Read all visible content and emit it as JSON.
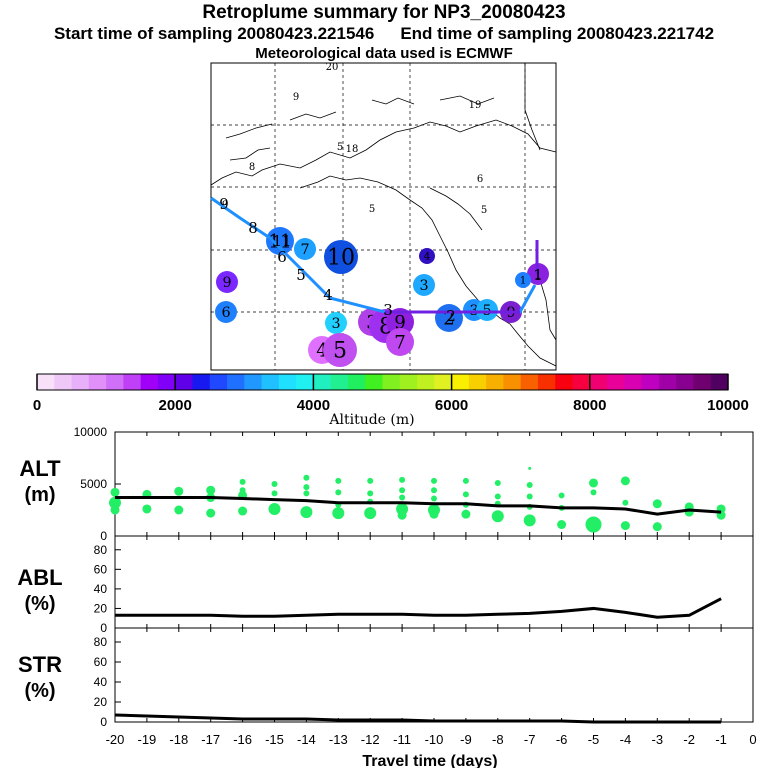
{
  "header": {
    "title": "Retroplume summary for NP3_20080423",
    "start_label": "Start time of sampling 20080423.221546",
    "end_label": "End time of sampling 20080423.221742",
    "met_label": "Meteorological data used is ECMWF"
  },
  "colors": {
    "trajectory": "#1e90ff",
    "release_segment": "#7020e0",
    "altitude_dots": "#22ee66",
    "line": "#000000"
  },
  "map": {
    "grid_numbers": [
      "20",
      "9",
      "19",
      "5",
      "18",
      "8",
      "6",
      "9",
      "5",
      "5"
    ],
    "plume_labels": [
      {
        "label": "9",
        "color": "#7a28ff",
        "size": 1
      },
      {
        "label": "11",
        "color": "#1e78ff",
        "size": 2
      },
      {
        "label": "7",
        "color": "#1ea0ff",
        "size": 1
      },
      {
        "label": "10",
        "color": "#1050e0",
        "size": 3
      },
      {
        "label": "4",
        "color": "#3010c0",
        "size": 0
      },
      {
        "label": "3",
        "color": "#1ea8ff",
        "size": 1
      },
      {
        "label": "6",
        "color": "#1e80ff",
        "size": 1
      },
      {
        "label": "3",
        "color": "#22d0ff",
        "size": 1
      },
      {
        "label": "4",
        "color": "#e070ff",
        "size": 2
      },
      {
        "label": "5",
        "color": "#c050f0",
        "size": 3
      },
      {
        "label": "3",
        "color": "#b040e8",
        "size": 2
      },
      {
        "label": "8",
        "color": "#a030f0",
        "size": 3
      },
      {
        "label": "9",
        "color": "#9020e0",
        "size": 2
      },
      {
        "label": "7",
        "color": "#c048f0",
        "size": 2
      },
      {
        "label": "2",
        "color": "#1e70f0",
        "size": 2
      },
      {
        "label": "3",
        "color": "#1e90ff",
        "size": 1
      },
      {
        "label": "5",
        "color": "#1eb0ff",
        "size": 1
      },
      {
        "label": "9",
        "color": "#7a20d0",
        "size": 1
      },
      {
        "label": "1",
        "color": "#8a20e0",
        "size": 1
      },
      {
        "label": "1",
        "color": "#1e80ff",
        "size": 0
      }
    ],
    "track_labels": [
      "9",
      "8",
      "11",
      "6",
      "5",
      "4",
      "3",
      "2",
      "1"
    ]
  },
  "colorbar": {
    "ticks": [
      "0",
      "2000",
      "4000",
      "6000",
      "8000",
      "10000"
    ],
    "label": "Altitude (m)",
    "min": 0,
    "max": 10000,
    "colors": [
      "#f8e0f8",
      "#f0c8f8",
      "#e8b0f8",
      "#e090f8",
      "#d070f8",
      "#c040f8",
      "#a000f8",
      "#8000f8",
      "#6000e8",
      "#1818f0",
      "#2048ff",
      "#2070ff",
      "#2098ff",
      "#20c0ff",
      "#20e0ff",
      "#20f0f0",
      "#20f0c0",
      "#20f090",
      "#20f060",
      "#40f020",
      "#80f020",
      "#a0f020",
      "#c0f020",
      "#e0f020",
      "#f8f000",
      "#f8d000",
      "#f8b000",
      "#f89000",
      "#f86000",
      "#f83000",
      "#f80010",
      "#f80040",
      "#f00070",
      "#e80098",
      "#d800b0",
      "#c000c0",
      "#a000a8",
      "#880090",
      "#700070",
      "#500060"
    ]
  },
  "chart_data": [
    {
      "type": "line",
      "panel_label": "ALT",
      "unit_label": "(m)",
      "ylim": [
        0,
        10000
      ],
      "yticks": [
        "0",
        "5000",
        "10000"
      ],
      "x": [
        -20,
        -19,
        -18,
        -17,
        -16,
        -15,
        -14,
        -13,
        -12,
        -11,
        -10,
        -9,
        -8,
        -7,
        -6,
        -5,
        -4,
        -3,
        -2,
        -1
      ],
      "values": [
        3700,
        3700,
        3700,
        3700,
        3600,
        3500,
        3400,
        3200,
        3200,
        3200,
        3100,
        3100,
        2900,
        2900,
        2700,
        2700,
        2600,
        2100,
        2500,
        2300
      ],
      "scatter": [
        {
          "x": -20,
          "y": 4200,
          "s": 2
        },
        {
          "x": -20,
          "y": 3200,
          "s": 3
        },
        {
          "x": -20,
          "y": 2500,
          "s": 2
        },
        {
          "x": -19,
          "y": 4000,
          "s": 2
        },
        {
          "x": -19,
          "y": 2600,
          "s": 2
        },
        {
          "x": -18,
          "y": 4300,
          "s": 2
        },
        {
          "x": -18,
          "y": 2500,
          "s": 2
        },
        {
          "x": -17,
          "y": 4400,
          "s": 2
        },
        {
          "x": -17,
          "y": 3700,
          "s": 2
        },
        {
          "x": -17,
          "y": 2200,
          "s": 2
        },
        {
          "x": -16,
          "y": 5200,
          "s": 1
        },
        {
          "x": -16,
          "y": 4400,
          "s": 1
        },
        {
          "x": -16,
          "y": 3900,
          "s": 2
        },
        {
          "x": -16,
          "y": 2400,
          "s": 2
        },
        {
          "x": -15,
          "y": 5000,
          "s": 1
        },
        {
          "x": -15,
          "y": 4100,
          "s": 1
        },
        {
          "x": -15,
          "y": 2600,
          "s": 3
        },
        {
          "x": -14,
          "y": 5600,
          "s": 1
        },
        {
          "x": -14,
          "y": 4700,
          "s": 1
        },
        {
          "x": -14,
          "y": 4100,
          "s": 1
        },
        {
          "x": -14,
          "y": 2300,
          "s": 3
        },
        {
          "x": -13,
          "y": 5300,
          "s": 1
        },
        {
          "x": -13,
          "y": 4200,
          "s": 1
        },
        {
          "x": -13,
          "y": 3000,
          "s": 1
        },
        {
          "x": -13,
          "y": 2200,
          "s": 3
        },
        {
          "x": -12,
          "y": 5300,
          "s": 1
        },
        {
          "x": -12,
          "y": 4100,
          "s": 1
        },
        {
          "x": -12,
          "y": 3300,
          "s": 1
        },
        {
          "x": -12,
          "y": 2200,
          "s": 3
        },
        {
          "x": -11,
          "y": 5400,
          "s": 1
        },
        {
          "x": -11,
          "y": 4400,
          "s": 1
        },
        {
          "x": -11,
          "y": 3700,
          "s": 1
        },
        {
          "x": -11,
          "y": 2600,
          "s": 3
        },
        {
          "x": -11,
          "y": 2000,
          "s": 2
        },
        {
          "x": -10,
          "y": 5300,
          "s": 1
        },
        {
          "x": -10,
          "y": 4400,
          "s": 1
        },
        {
          "x": -10,
          "y": 3600,
          "s": 1
        },
        {
          "x": -10,
          "y": 2500,
          "s": 3
        },
        {
          "x": -10,
          "y": 2100,
          "s": 2
        },
        {
          "x": -9,
          "y": 5300,
          "s": 1
        },
        {
          "x": -9,
          "y": 4000,
          "s": 1
        },
        {
          "x": -9,
          "y": 3000,
          "s": 1
        },
        {
          "x": -9,
          "y": 2100,
          "s": 2
        },
        {
          "x": -8,
          "y": 5100,
          "s": 1
        },
        {
          "x": -8,
          "y": 3800,
          "s": 1
        },
        {
          "x": -8,
          "y": 3100,
          "s": 1
        },
        {
          "x": -8,
          "y": 1900,
          "s": 3
        },
        {
          "x": -7,
          "y": 6500,
          "s": 0
        },
        {
          "x": -7,
          "y": 4900,
          "s": 1
        },
        {
          "x": -7,
          "y": 3800,
          "s": 1
        },
        {
          "x": -7,
          "y": 2800,
          "s": 1
        },
        {
          "x": -7,
          "y": 1500,
          "s": 3
        },
        {
          "x": -6,
          "y": 3900,
          "s": 1
        },
        {
          "x": -6,
          "y": 2700,
          "s": 1
        },
        {
          "x": -6,
          "y": 1100,
          "s": 2
        },
        {
          "x": -5,
          "y": 5100,
          "s": 2
        },
        {
          "x": -5,
          "y": 4200,
          "s": 1
        },
        {
          "x": -5,
          "y": 1100,
          "s": 4
        },
        {
          "x": -4,
          "y": 5300,
          "s": 2
        },
        {
          "x": -4,
          "y": 3200,
          "s": 1
        },
        {
          "x": -4,
          "y": 1000,
          "s": 2
        },
        {
          "x": -3,
          "y": 3100,
          "s": 2
        },
        {
          "x": -3,
          "y": 900,
          "s": 2
        },
        {
          "x": -2,
          "y": 2800,
          "s": 2
        },
        {
          "x": -2,
          "y": 2300,
          "s": 2
        },
        {
          "x": -1,
          "y": 2600,
          "s": 2
        },
        {
          "x": -1,
          "y": 2000,
          "s": 2
        }
      ]
    },
    {
      "type": "line",
      "panel_label": "ABL",
      "unit_label": "(%)",
      "ylim": [
        0,
        90
      ],
      "yticks": [
        "0",
        "20",
        "40",
        "60",
        "80"
      ],
      "x": [
        -20,
        -19,
        -18,
        -17,
        -16,
        -15,
        -14,
        -13,
        -12,
        -11,
        -10,
        -9,
        -8,
        -7,
        -6,
        -5,
        -4,
        -3,
        -2,
        -1
      ],
      "values": [
        13,
        13,
        13,
        13,
        12,
        12,
        13,
        14,
        14,
        14,
        13,
        13,
        14,
        15,
        17,
        20,
        16,
        11,
        13,
        30
      ]
    },
    {
      "type": "line",
      "panel_label": "STR",
      "unit_label": "(%)",
      "ylim": [
        0,
        90
      ],
      "yticks": [
        "0",
        "20",
        "40",
        "60",
        "80"
      ],
      "x": [
        -20,
        -19,
        -18,
        -17,
        -16,
        -15,
        -14,
        -13,
        -12,
        -11,
        -10,
        -9,
        -8,
        -7,
        -6,
        -5,
        -4,
        -3,
        -2,
        -1
      ],
      "values": [
        7,
        6,
        5,
        4,
        3,
        3,
        3,
        2,
        2,
        2,
        1,
        1,
        1,
        1,
        1,
        0,
        0,
        0,
        0,
        0
      ],
      "xticks": [
        "-20",
        "-19",
        "-18",
        "-17",
        "-16",
        "-15",
        "-14",
        "-13",
        "-12",
        "-11",
        "-10",
        "-9",
        "-8",
        "-7",
        "-6",
        "-5",
        "-4",
        "-3",
        "-2",
        "-1",
        "0"
      ],
      "xlabel": "Travel time (days)"
    }
  ]
}
